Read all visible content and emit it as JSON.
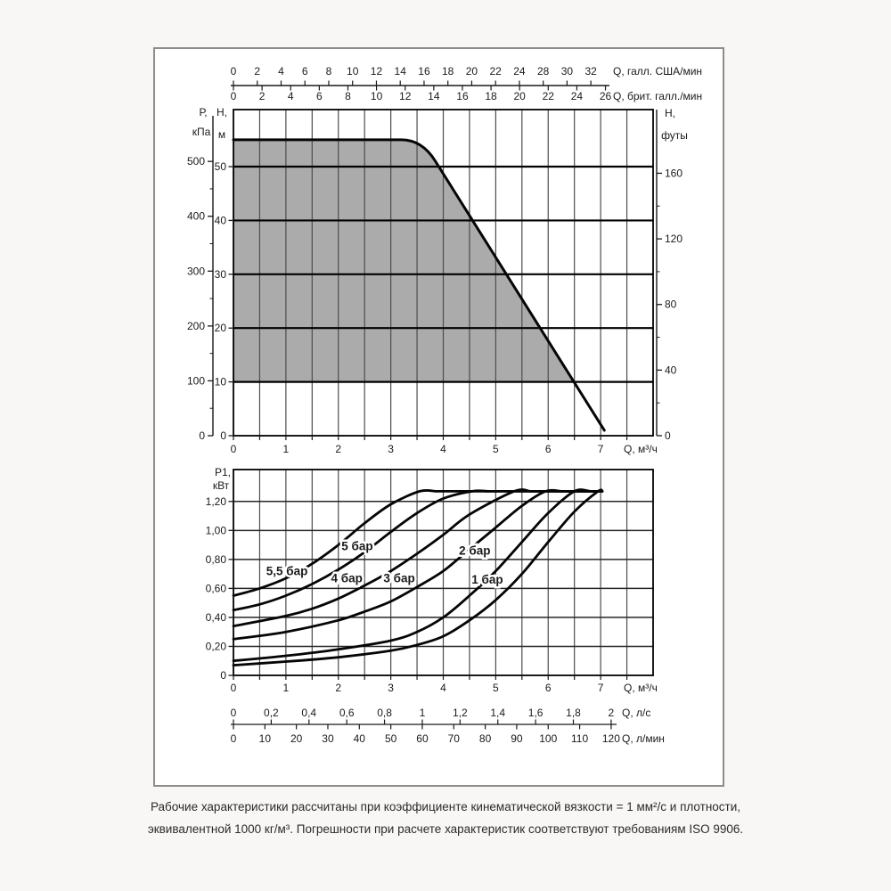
{
  "page": {
    "background": "#f8f7f5",
    "panel_border": "#8c8c8c",
    "footer": {
      "line1": "Рабочие характеристики рассчитаны при коэффициенте кинематической вязкости = 1 мм²/с и плотности,",
      "line2": "эквивалентной 1000 кг/м³. Погрешности при расчете характеристик соответствуют требованиям ISO 9906."
    }
  },
  "colors": {
    "text": "#1a1a1a",
    "grid_v": "#4d4d4d",
    "grid_h_top": "#000000",
    "grid_h_bottom": "#262626",
    "frame": "#000000",
    "curve": "#050505",
    "fill_area": "#ababab",
    "axis": "#1a1a1a"
  },
  "chart_data": [
    {
      "type": "area",
      "name": "head-flow-chart",
      "x_range_m3h": [
        0,
        8
      ],
      "grid_step_x": 0.5,
      "grid_step_y_m": 10,
      "y_range_m": [
        0,
        60.6
      ],
      "x_axis_m3h": {
        "unit": "Q, м³/ч",
        "labels": [
          "0",
          "1",
          "2",
          "3",
          "4",
          "5",
          "6",
          "7"
        ],
        "values": [
          0,
          1,
          2,
          3,
          4,
          5,
          6,
          7
        ]
      },
      "x_top_usgpm": {
        "unit": "Q, галл. США/мин",
        "labels": [
          "0",
          "2",
          "4",
          "6",
          "8",
          "10",
          "12",
          "14",
          "16",
          "18",
          "20",
          "22",
          "24",
          "28",
          "30",
          "32"
        ],
        "step_gpm": 2,
        "gpm_per_m3h": 4.4029
      },
      "x_top_impgpm": {
        "unit": "Q, брит. галл./мин",
        "labels": [
          "0",
          "2",
          "4",
          "6",
          "8",
          "10",
          "12",
          "14",
          "16",
          "18",
          "20",
          "22",
          "24",
          "26"
        ],
        "step_gpm": 2,
        "gpm_per_m3h": 3.6661
      },
      "y_left_pressure": {
        "title": [
          "Р,",
          "кПа"
        ],
        "labels": [
          "500",
          "400",
          "300",
          "200",
          "100",
          "0"
        ],
        "values": [
          500,
          400,
          300,
          200,
          100,
          0
        ],
        "minor_values": [
          450,
          350,
          250,
          150,
          50
        ],
        "kpa_per_m": 9.81
      },
      "y_left_head": {
        "title": [
          "H,",
          "м"
        ],
        "labels": [
          "50",
          "40",
          "30",
          "20",
          "10",
          "0"
        ],
        "values": [
          50,
          40,
          30,
          20,
          10,
          0
        ]
      },
      "y_right_feet": {
        "title": [
          "H,",
          "футы"
        ],
        "labels": [
          "160",
          "120",
          "80",
          "40",
          "0"
        ],
        "values": [
          160,
          120,
          80,
          40,
          0
        ],
        "minor_values": [
          140,
          100,
          60,
          20
        ],
        "m_per_ft": 0.3048
      },
      "envelope": {
        "flat_h_m": 55,
        "flat_end_q": 3.2,
        "knee_ctrl": [
          3.6,
          55
        ],
        "knee_end": [
          3.85,
          51
        ],
        "line_end": [
          7.07,
          1
        ],
        "fill_bottom_h_m": 10
      }
    },
    {
      "type": "line",
      "name": "power-flow-chart",
      "y_axis": {
        "title": [
          "Р1,",
          "кВт"
        ],
        "labels": [
          "1,20",
          "1,00",
          "0,80",
          "0,60",
          "0,40",
          "0,20",
          "0"
        ],
        "values": [
          1.2,
          1.0,
          0.8,
          0.6,
          0.4,
          0.2,
          0
        ],
        "range": [
          0,
          1.42
        ],
        "grid_step": 0.2
      },
      "x_axis_m3h": {
        "unit": "Q, м³/ч",
        "labels": [
          "0",
          "1",
          "2",
          "3",
          "4",
          "5",
          "6",
          "7"
        ],
        "values": [
          0,
          1,
          2,
          3,
          4,
          5,
          6,
          7
        ]
      },
      "x_axis_ls": {
        "unit": "Q, л/с",
        "labels": [
          "0",
          "0,2",
          "0,4",
          "0,6",
          "0,8",
          "1",
          "1,2",
          "1,4",
          "1,6",
          "1,8",
          "2"
        ],
        "values": [
          0,
          0.2,
          0.4,
          0.6,
          0.8,
          1,
          1.2,
          1.4,
          1.6,
          1.8,
          2
        ],
        "m3h_per_ls": 3.6
      },
      "x_axis_lmin": {
        "unit": "Q, л/мин",
        "labels": [
          "0",
          "10",
          "20",
          "30",
          "40",
          "50",
          "60",
          "70",
          "80",
          "90",
          "100",
          "110",
          "120"
        ],
        "values": [
          0,
          10,
          20,
          30,
          40,
          50,
          60,
          70,
          80,
          90,
          100,
          110,
          120
        ],
        "m3h_per_lmin": 0.06
      },
      "plateau_kw": 1.27,
      "end_q": 7.03,
      "series": [
        {
          "name": "5,5 бар",
          "label_q": 1.02,
          "label_p": 0.72,
          "points": [
            [
              0,
              0.55
            ],
            [
              0.5,
              0.6
            ],
            [
              1,
              0.67
            ],
            [
              1.5,
              0.77
            ],
            [
              2,
              0.9
            ],
            [
              2.5,
              1.05
            ],
            [
              3,
              1.18
            ],
            [
              3.55,
              1.27
            ]
          ]
        },
        {
          "name": "5 бар",
          "label_q": 2.36,
          "label_p": 0.89,
          "points": [
            [
              0,
              0.45
            ],
            [
              0.5,
              0.49
            ],
            [
              1,
              0.55
            ],
            [
              1.5,
              0.63
            ],
            [
              2,
              0.73
            ],
            [
              2.5,
              0.85
            ],
            [
              3,
              0.99
            ],
            [
              3.5,
              1.12
            ],
            [
              4,
              1.22
            ],
            [
              4.55,
              1.27
            ]
          ]
        },
        {
          "name": "4 бар",
          "label_q": 2.16,
          "label_p": 0.67,
          "points": [
            [
              0,
              0.34
            ],
            [
              1,
              0.41
            ],
            [
              1.5,
              0.46
            ],
            [
              2,
              0.53
            ],
            [
              2.5,
              0.62
            ],
            [
              3,
              0.72
            ],
            [
              3.5,
              0.84
            ],
            [
              4,
              0.97
            ],
            [
              4.5,
              1.11
            ],
            [
              5.35,
              1.27
            ]
          ]
        },
        {
          "name": "3 бар",
          "label_q": 3.16,
          "label_p": 0.67,
          "points": [
            [
              0,
              0.25
            ],
            [
              1,
              0.3
            ],
            [
              2,
              0.38
            ],
            [
              2.5,
              0.44
            ],
            [
              3,
              0.51
            ],
            [
              3.5,
              0.61
            ],
            [
              4,
              0.72
            ],
            [
              4.5,
              0.87
            ],
            [
              5,
              1.02
            ],
            [
              5.5,
              1.17
            ],
            [
              5.95,
              1.27
            ]
          ]
        },
        {
          "name": "2 бар",
          "label_q": 4.6,
          "label_p": 0.86,
          "points": [
            [
              0,
              0.1
            ],
            [
              1,
              0.135
            ],
            [
              2,
              0.18
            ],
            [
              3,
              0.24
            ],
            [
              3.5,
              0.3
            ],
            [
              4,
              0.4
            ],
            [
              4.5,
              0.55
            ],
            [
              5,
              0.72
            ],
            [
              5.5,
              0.92
            ],
            [
              6,
              1.12
            ],
            [
              6.5,
              1.27
            ]
          ]
        },
        {
          "name": "1 бар",
          "label_q": 4.84,
          "label_p": 0.66,
          "points": [
            [
              0,
              0.07
            ],
            [
              1,
              0.095
            ],
            [
              2,
              0.125
            ],
            [
              3,
              0.17
            ],
            [
              3.5,
              0.21
            ],
            [
              4,
              0.27
            ],
            [
              4.5,
              0.38
            ],
            [
              5,
              0.52
            ],
            [
              5.5,
              0.7
            ],
            [
              6,
              0.92
            ],
            [
              6.5,
              1.13
            ],
            [
              6.95,
              1.27
            ]
          ]
        }
      ]
    }
  ]
}
